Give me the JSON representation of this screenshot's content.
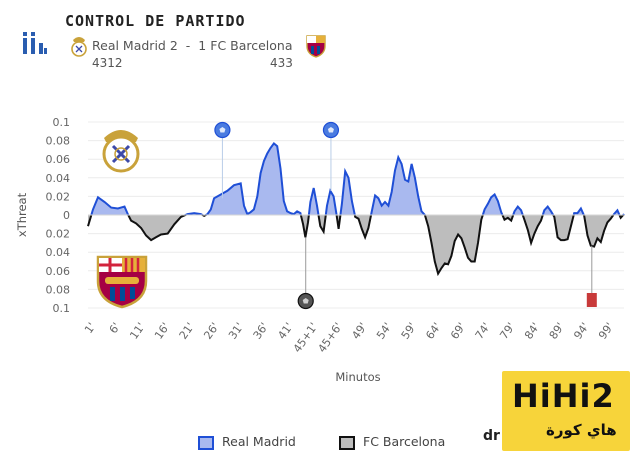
{
  "header": {
    "title": "CONTROL DE PARTIDO",
    "home_team": "Real Madrid",
    "home_score": "2",
    "separator": "-",
    "away_score": "1",
    "away_team": "FC Barcelona",
    "home_formation": "4312",
    "away_formation": "433"
  },
  "colors": {
    "home_line": "#1f4fd6",
    "home_fill": "#a9b9ef",
    "away_line": "#111111",
    "away_fill": "#bdbdbd",
    "event_line": "#b9cde8",
    "red_card": "#c83a3a",
    "watermark_bg": "#f7d43a"
  },
  "chart_data": {
    "type": "area",
    "xlabel": "Minutos",
    "ylabel": "xThreat",
    "x_tick_labels": [
      "1'",
      "6'",
      "11'",
      "16'",
      "21'",
      "26'",
      "31'",
      "36'",
      "41'",
      "45+1'",
      "45+6'",
      "49'",
      "54'",
      "59'",
      "64'",
      "69'",
      "74'",
      "79'",
      "84'",
      "89'",
      "94'",
      "99'"
    ],
    "y_tick_labels": [
      "0.1",
      "0.08",
      "0.06",
      "0.04",
      "0.02",
      "0",
      "0.02",
      "0.04",
      "0.06",
      "0.08",
      "0.1"
    ],
    "ylim": [
      -0.1,
      0.1
    ],
    "series": [
      {
        "name": "Real Madrid",
        "side": "positive"
      },
      {
        "name": "FC Barcelona",
        "side": "negative"
      }
    ],
    "x_index": [
      0,
      1,
      2,
      3,
      4,
      5,
      6,
      7,
      8,
      9,
      10,
      11,
      12,
      13,
      14,
      15,
      16,
      17,
      18,
      19,
      20,
      21,
      22,
      23,
      24,
      25,
      26,
      27,
      28,
      29,
      30,
      31,
      32,
      33,
      34,
      35,
      36,
      37,
      38,
      39,
      40,
      41,
      42,
      43,
      44,
      45,
      46,
      47,
      48,
      49,
      50,
      51,
      52,
      53,
      54,
      55,
      56,
      57,
      58,
      59,
      60,
      61,
      62,
      63,
      64,
      65,
      66,
      67,
      68,
      69,
      70,
      71,
      72,
      73,
      74,
      75,
      76,
      77,
      78,
      79,
      80,
      81,
      82,
      83,
      84,
      85,
      86,
      87,
      88,
      89,
      90,
      91,
      92,
      93,
      94,
      95,
      96,
      97,
      98,
      99,
      100,
      101,
      102,
      103,
      104,
      105,
      106,
      107,
      108,
      109,
      110,
      111,
      112,
      113,
      114,
      115,
      116,
      117,
      118,
      119,
      120,
      121,
      122,
      123,
      124,
      125,
      126,
      127,
      128,
      129,
      130,
      131,
      132,
      133,
      134,
      135,
      136,
      137,
      138,
      139,
      140,
      141,
      142,
      143,
      144,
      145,
      146,
      147,
      148,
      149,
      150,
      151,
      152,
      153,
      154,
      155,
      156,
      157,
      158,
      159,
      160,
      161,
      162,
      163,
      164,
      165,
      166,
      167,
      168,
      169,
      170,
      171,
      172,
      173,
      174,
      175,
      176,
      177,
      178,
      179,
      180,
      181,
      182,
      183,
      184,
      185,
      186,
      187,
      188,
      189,
      190,
      191,
      192,
      193,
      194,
      195,
      196,
      197,
      198,
      199,
      200,
      201,
      202,
      203,
      204,
      205,
      206,
      207,
      208,
      209,
      210,
      211,
      212,
      213,
      214,
      215,
      216,
      217,
      218,
      219,
      220,
      221,
      222,
      223,
      224,
      225,
      226,
      227,
      228,
      229,
      230,
      231,
      232,
      233,
      234,
      235,
      236,
      237,
      238,
      239,
      240,
      241,
      242,
      243,
      244,
      245,
      246,
      247,
      248,
      249,
      250,
      251,
      252,
      253,
      254,
      255,
      256,
      257,
      258,
      259,
      260,
      261,
      262,
      263,
      264,
      265,
      266,
      267,
      268,
      269,
      270,
      271,
      272,
      273,
      274,
      275,
      276,
      277,
      278,
      279,
      280,
      281,
      282,
      283,
      284,
      285,
      286,
      287,
      288,
      289,
      290,
      291,
      292,
      293,
      294,
      295,
      296,
      297,
      298,
      299,
      300,
      301,
      302,
      303,
      304,
      305,
      306,
      307,
      308,
      309,
      310,
      311,
      312,
      313,
      314,
      315,
      316,
      317,
      318,
      319,
      320,
      321,
      322,
      323,
      324,
      325,
      326,
      327,
      328,
      329,
      330,
      331,
      332,
      333,
      334,
      335,
      336,
      337,
      338,
      339,
      340,
      341,
      342,
      343,
      344,
      345,
      346,
      347,
      348,
      349,
      350,
      351,
      352,
      353,
      354,
      355,
      356,
      357,
      358,
      359,
      360,
      361,
      362,
      363,
      364,
      365,
      366,
      367,
      368,
      369,
      370,
      371,
      372,
      373,
      374,
      375,
      376,
      377,
      378,
      379,
      380,
      381,
      382,
      383,
      384,
      385,
      386,
      387,
      388,
      389,
      390,
      391,
      392,
      393,
      394,
      395,
      396,
      397,
      398,
      399,
      400,
      401,
      402,
      403,
      404,
      405,
      406,
      407,
      408,
      409,
      410,
      411,
      412,
      413,
      414,
      415,
      416,
      417,
      418,
      419,
      420,
      421,
      422,
      423,
      424,
      425,
      426,
      427,
      428,
      429,
      430,
      431,
      432,
      433,
      434,
      435,
      436,
      437,
      438,
      439,
      440,
      441,
      442,
      443,
      444,
      445,
      446,
      447,
      448,
      449,
      450,
      451,
      452,
      453,
      454,
      455,
      456,
      457,
      458,
      459,
      460,
      461,
      462,
      463,
      464,
      465,
      466,
      467,
      468,
      469,
      470,
      471,
      472,
      473,
      474,
      475,
      476,
      477,
      478,
      479,
      480,
      481,
      482,
      483,
      484,
      485,
      486,
      487,
      488,
      489,
      490,
      491,
      492,
      493,
      494,
      495,
      496,
      497,
      498,
      499,
      500,
      501,
      502,
      503,
      504,
      505,
      506,
      507,
      508,
      509,
      510,
      511,
      512,
      513,
      514,
      515,
      516,
      517,
      518,
      519,
      520,
      521,
      522,
      523,
      524,
      525,
      526,
      527,
      528,
      529,
      530,
      531,
      532,
      533,
      534,
      535,
      536,
      537,
      538,
      539,
      540
    ],
    "points": [
      [
        0,
        -0.012
      ],
      [
        1.5,
        0.006
      ],
      [
        3,
        0.019
      ],
      [
        5,
        0.014
      ],
      [
        7,
        0.008
      ],
      [
        9,
        0.007
      ],
      [
        11,
        0.009
      ],
      [
        12,
        0.001
      ],
      [
        13,
        -0.006
      ],
      [
        14.5,
        -0.009
      ],
      [
        16,
        -0.014
      ],
      [
        17.5,
        -0.022
      ],
      [
        19,
        -0.027
      ],
      [
        20.5,
        -0.024
      ],
      [
        22,
        -0.021
      ],
      [
        24,
        -0.02
      ],
      [
        26,
        -0.01
      ],
      [
        28,
        -0.002
      ],
      [
        30,
        0.001
      ],
      [
        32,
        0.002
      ],
      [
        34,
        0.001
      ],
      [
        35,
        -0.001
      ],
      [
        36,
        0.001
      ],
      [
        37,
        0.006
      ],
      [
        38,
        0.018
      ],
      [
        40,
        0.022
      ],
      [
        42,
        0.026
      ],
      [
        44,
        0.032
      ],
      [
        46,
        0.034
      ],
      [
        47,
        0.01
      ],
      [
        48,
        0.001
      ],
      [
        49,
        0.003
      ],
      [
        50,
        0.006
      ],
      [
        51,
        0.02
      ],
      [
        52,
        0.045
      ],
      [
        53,
        0.058
      ],
      [
        54,
        0.066
      ],
      [
        55,
        0.072
      ],
      [
        56,
        0.077
      ],
      [
        57,
        0.074
      ],
      [
        58,
        0.05
      ],
      [
        59,
        0.015
      ],
      [
        60,
        0.004
      ],
      [
        61,
        0.002
      ],
      [
        62,
        0.001
      ],
      [
        63,
        0.004
      ],
      [
        64,
        0.002
      ],
      [
        64.8,
        -0.01
      ],
      [
        65.5,
        -0.024
      ],
      [
        66.3,
        -0.008
      ],
      [
        67,
        0.014
      ],
      [
        68,
        0.029
      ],
      [
        69,
        0.01
      ],
      [
        70,
        -0.012
      ],
      [
        71,
        -0.018
      ],
      [
        72,
        0.01
      ],
      [
        73,
        0.026
      ],
      [
        74,
        0.02
      ],
      [
        74.8,
        0.002
      ],
      [
        75.5,
        -0.015
      ],
      [
        76.5,
        0.012
      ],
      [
        77.5,
        0.047
      ],
      [
        78.5,
        0.04
      ],
      [
        79.5,
        0.015
      ],
      [
        80.5,
        -0.002
      ],
      [
        81.5,
        -0.004
      ],
      [
        82.5,
        -0.015
      ],
      [
        83.5,
        -0.024
      ],
      [
        84.5,
        -0.014
      ],
      [
        85.5,
        0.004
      ],
      [
        86.5,
        0.021
      ],
      [
        87.5,
        0.018
      ],
      [
        88.5,
        0.01
      ],
      [
        89.5,
        0.014
      ],
      [
        90.5,
        0.01
      ],
      [
        91.5,
        0.025
      ],
      [
        92.5,
        0.048
      ],
      [
        93.5,
        0.062
      ],
      [
        94.5,
        0.055
      ],
      [
        95.5,
        0.038
      ],
      [
        96.5,
        0.036
      ],
      [
        97.5,
        0.055
      ],
      [
        98.5,
        0.04
      ],
      [
        99.5,
        0.02
      ],
      [
        100.5,
        0.004
      ],
      [
        101.5,
        0.0
      ],
      [
        102.5,
        -0.012
      ],
      [
        103.5,
        -0.03
      ],
      [
        104.5,
        -0.05
      ],
      [
        105.5,
        -0.063
      ],
      [
        106.5,
        -0.057
      ],
      [
        107.5,
        -0.052
      ],
      [
        108.5,
        -0.053
      ],
      [
        109.5,
        -0.044
      ],
      [
        110.5,
        -0.028
      ],
      [
        111.5,
        -0.021
      ],
      [
        112.5,
        -0.025
      ],
      [
        113.5,
        -0.035
      ],
      [
        114.5,
        -0.046
      ],
      [
        115.5,
        -0.05
      ],
      [
        116.5,
        -0.05
      ],
      [
        117.5,
        -0.03
      ],
      [
        118.5,
        -0.005
      ],
      [
        119.5,
        0.006
      ],
      [
        120.5,
        0.012
      ],
      [
        121.5,
        0.019
      ],
      [
        122.5,
        0.022
      ],
      [
        123.5,
        0.015
      ],
      [
        124.5,
        0.003
      ],
      [
        125.5,
        -0.005
      ],
      [
        126.5,
        -0.003
      ],
      [
        127.5,
        -0.006
      ],
      [
        128.5,
        0.004
      ],
      [
        129.5,
        0.009
      ],
      [
        130.5,
        0.005
      ],
      [
        131.5,
        -0.005
      ],
      [
        132.5,
        -0.016
      ],
      [
        133.5,
        -0.03
      ],
      [
        134.5,
        -0.02
      ],
      [
        135.5,
        -0.012
      ],
      [
        136.5,
        -0.006
      ],
      [
        137.5,
        0.005
      ],
      [
        138.5,
        0.009
      ],
      [
        139.5,
        0.004
      ],
      [
        140.5,
        -0.002
      ],
      [
        141.5,
        -0.024
      ],
      [
        142.5,
        -0.027
      ],
      [
        143.5,
        -0.027
      ],
      [
        144.5,
        -0.026
      ],
      [
        145.5,
        -0.012
      ],
      [
        146.5,
        0.002
      ],
      [
        147.5,
        0.002
      ],
      [
        148.5,
        0.007
      ],
      [
        149.5,
        -0.001
      ],
      [
        150.5,
        -0.022
      ],
      [
        151.5,
        -0.033
      ],
      [
        152.5,
        -0.034
      ],
      [
        153.5,
        -0.025
      ],
      [
        154.5,
        -0.029
      ],
      [
        155.5,
        -0.017
      ],
      [
        156.5,
        -0.008
      ],
      [
        157.5,
        -0.004
      ],
      [
        158.5,
        0.001
      ],
      [
        159.5,
        0.005
      ],
      [
        160.5,
        -0.003
      ],
      [
        161.5,
        0.001
      ]
    ],
    "x_min": 0,
    "x_max": 161.5,
    "events": [
      {
        "type": "goal",
        "team": "Real Madrid",
        "x": 40.5,
        "y": 0.018
      },
      {
        "type": "goal",
        "team": "Real Madrid",
        "x": 73.2,
        "y": 0.026
      },
      {
        "type": "goal",
        "team": "FC Barcelona",
        "x": 65.6,
        "y": -0.024
      },
      {
        "type": "red-card",
        "team": "FC Barcelona",
        "x": 151.8,
        "y": -0.033
      }
    ]
  },
  "legend": [
    {
      "label": "Real Madrid"
    },
    {
      "label": "FC Barcelona"
    }
  ],
  "watermark": {
    "main": "HiHi2",
    "sub": "هاي كورة",
    "partial": "dr"
  }
}
